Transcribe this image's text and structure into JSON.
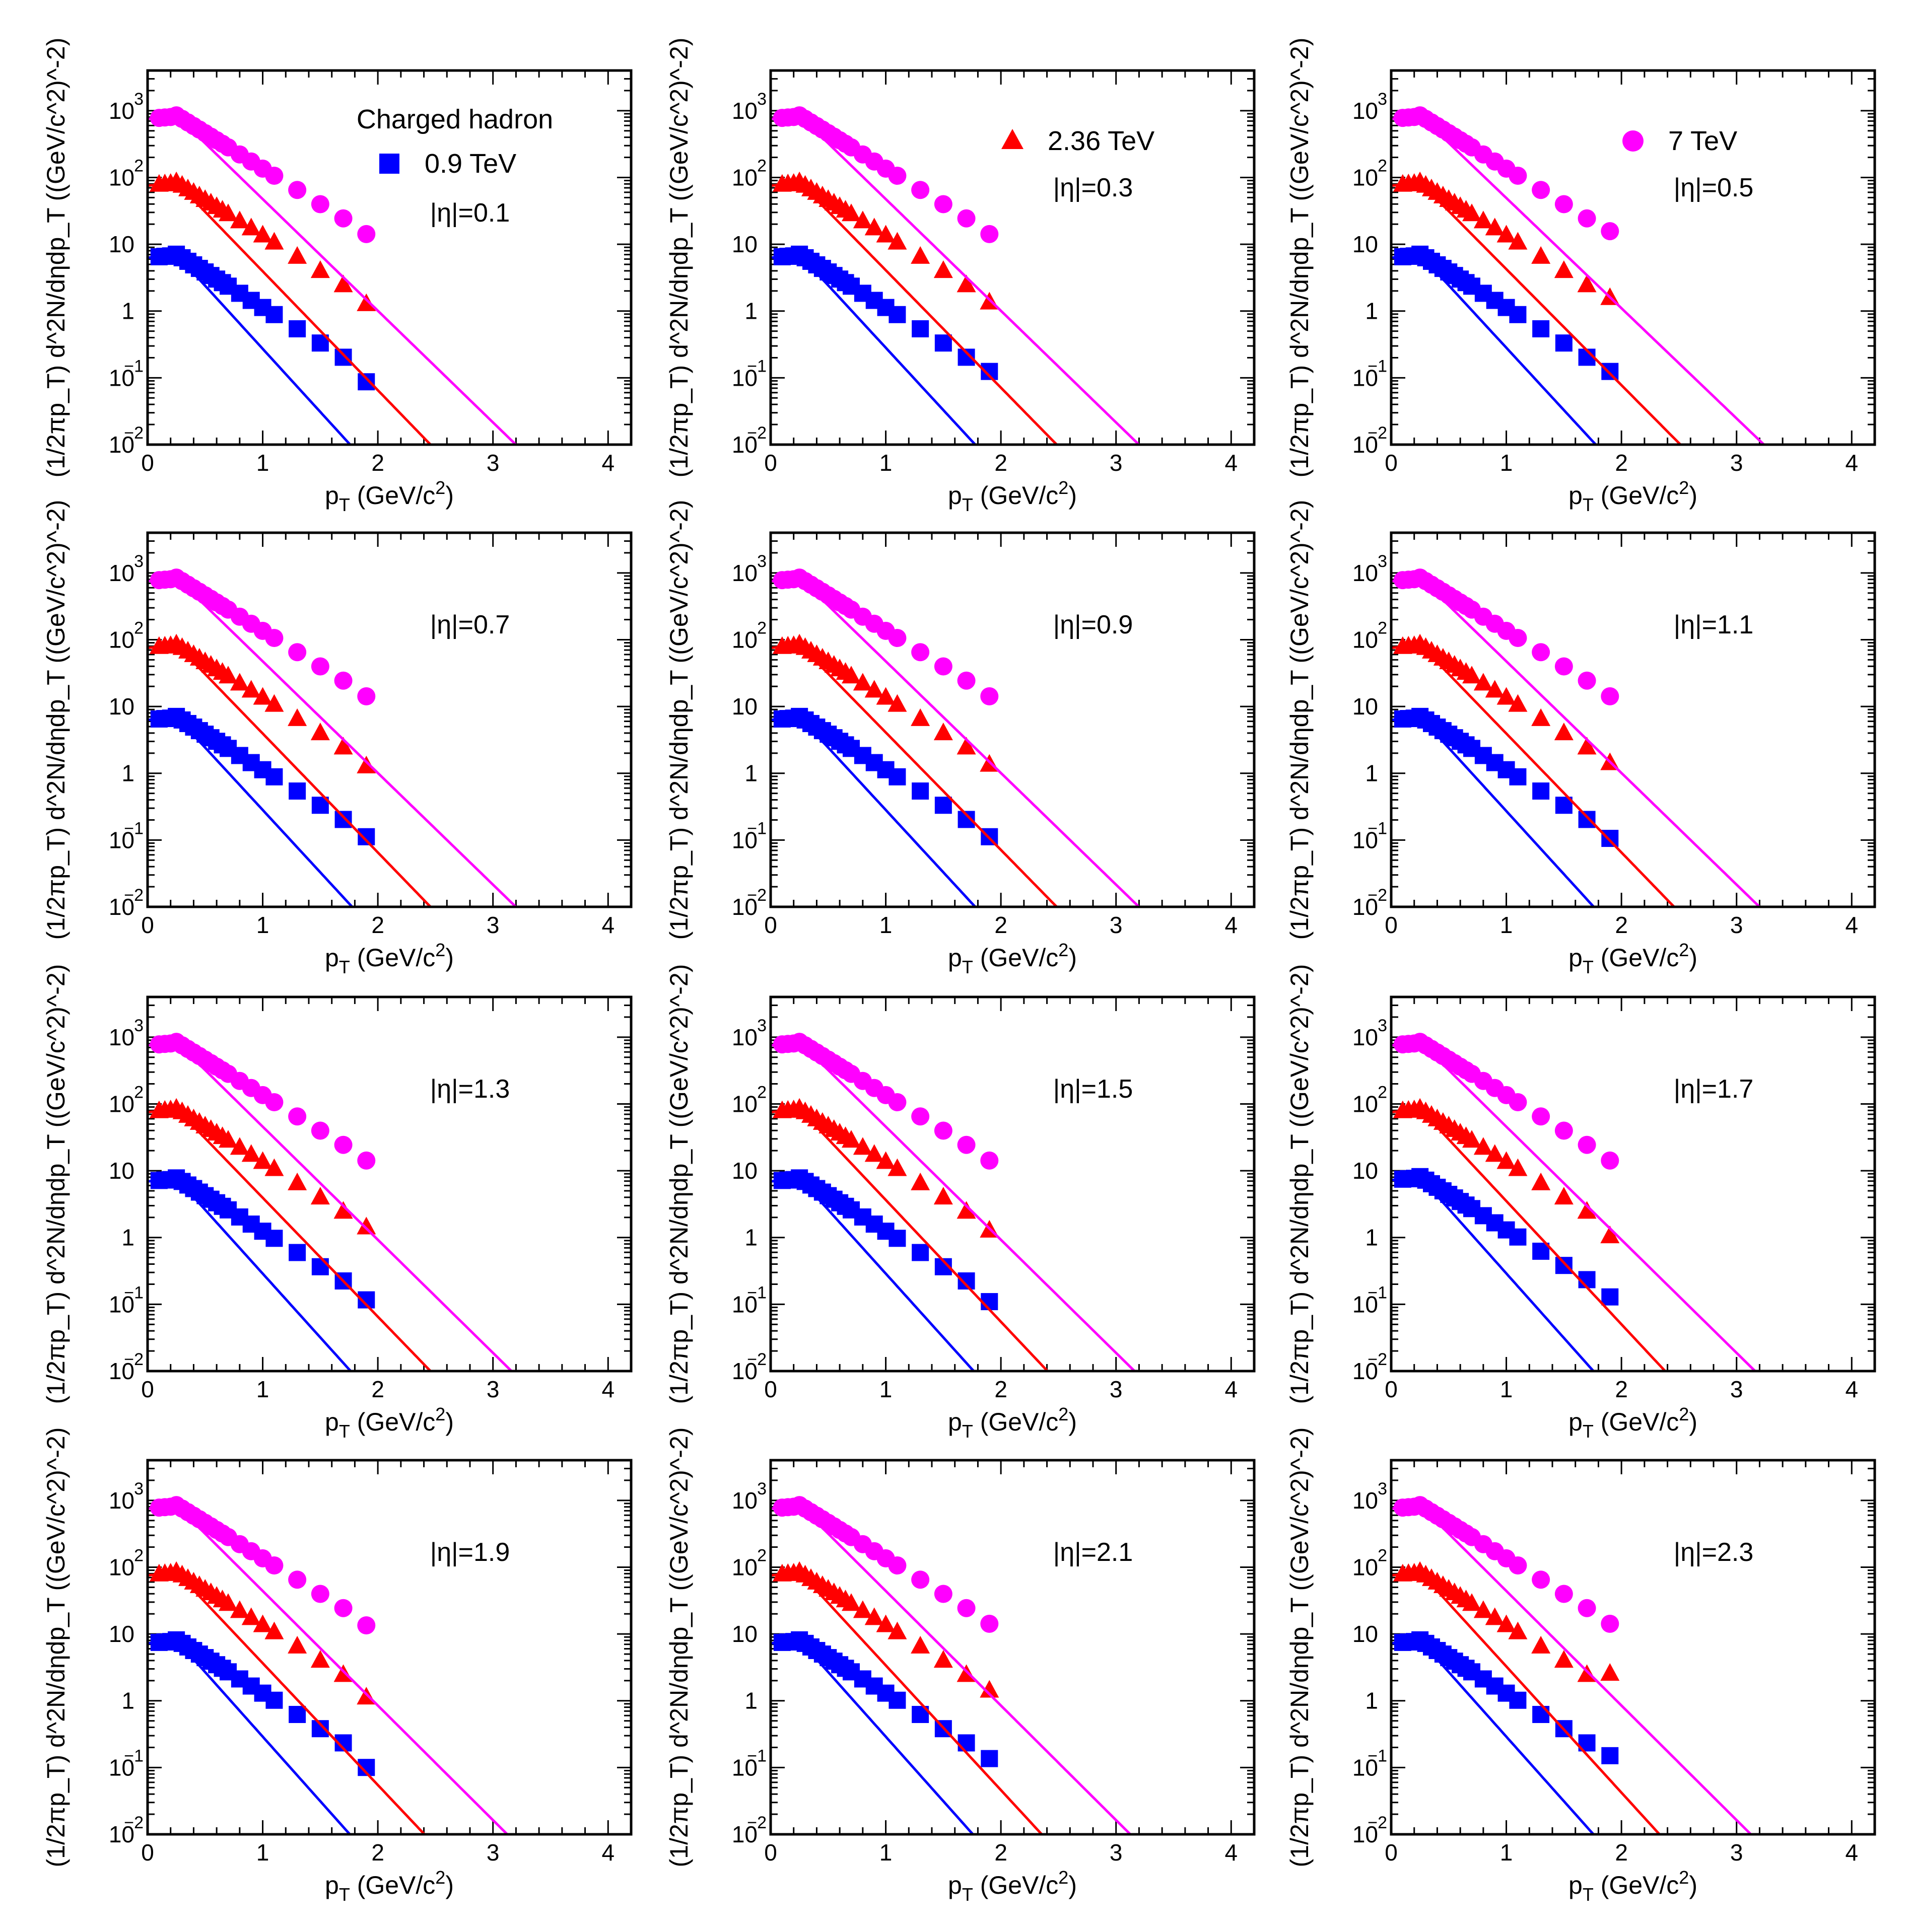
{
  "chart_data": {
    "type": "scatter",
    "x_axis": {
      "title": "p_T (GeV/c^2)",
      "title_main": "p",
      "title_sub": "T",
      "title_rest": " (GeV/c",
      "title_sup": "2",
      "title_close": ")",
      "range": [
        0,
        4.2
      ],
      "ticks": [
        0,
        1,
        2,
        3,
        4
      ],
      "tick_labels": [
        "0",
        "1",
        "2",
        "3",
        "4"
      ]
    },
    "y_axis": {
      "title": "(1/2πp_T) d^2N/dηdp_T ((GeV/c^2)^-2)",
      "scale": "log",
      "range": [
        0.01,
        4000
      ],
      "ticks": [
        0.01,
        0.1,
        1,
        10,
        100,
        1000
      ],
      "tick_labels": [
        {
          "base": "10",
          "exp": "−2"
        },
        {
          "base": "10",
          "exp": "−1"
        },
        {
          "base": "1",
          "exp": ""
        },
        {
          "base": "10",
          "exp": ""
        },
        {
          "base": "10",
          "exp": "2"
        },
        {
          "base": "10",
          "exp": "3"
        }
      ]
    },
    "legend": {
      "title": "Charged hadron",
      "entries": [
        {
          "label": "0.9 TeV",
          "marker": "square",
          "color": "#0000ff",
          "panel": 0
        },
        {
          "label": "2.36 TeV",
          "marker": "triangle",
          "color": "#ff0000",
          "panel": 1
        },
        {
          "label": "7 TeV",
          "marker": "circle",
          "color": "#ff00ff",
          "panel": 2
        }
      ]
    },
    "x": [
      0.1,
      0.15,
      0.2,
      0.25,
      0.3,
      0.35,
      0.4,
      0.45,
      0.5,
      0.55,
      0.6,
      0.65,
      0.7,
      0.8,
      0.9,
      1.0,
      1.1,
      1.3,
      1.5,
      1.7,
      1.9
    ],
    "panels": [
      {
        "label": "|η|=0.1",
        "series": [
          {
            "name": "0.9 TeV",
            "energy": "0.9 TeV",
            "color": "#0000ff",
            "marker": "square",
            "y_scale": 1,
            "fit_slope": 4.35,
            "fit_end": 2.44,
            "ratio_last": 0.7
          },
          {
            "name": "2.36 TeV",
            "energy": "2.36 TeV",
            "color": "#ff0000",
            "marker": "triangle",
            "y_scale": 12,
            "fit_slope": 4.1,
            "fit_end": 3.38,
            "ratio_last": 0.85
          },
          {
            "name": "7 TeV",
            "energy": "7 TeV",
            "color": "#ff00ff",
            "marker": "circle",
            "y_scale": 120,
            "fit_slope": 3.85,
            "fit_end": 4.2,
            "ratio_last": 0.95
          }
        ]
      },
      {
        "label": "|η|=0.3",
        "series": [
          {
            "name": "0.9 TeV",
            "energy": "0.9 TeV",
            "color": "#0000ff",
            "marker": "square",
            "y_scale": 1,
            "fit_slope": 4.3,
            "fit_end": 2.48,
            "ratio_last": 1.0
          },
          {
            "name": "2.36 TeV",
            "energy": "2.36 TeV",
            "color": "#ff0000",
            "marker": "triangle",
            "y_scale": 12,
            "fit_slope": 4.05,
            "fit_end": 3.42,
            "ratio_last": 0.9
          },
          {
            "name": "7 TeV",
            "energy": "7 TeV",
            "color": "#ff00ff",
            "marker": "circle",
            "y_scale": 120,
            "fit_slope": 3.85,
            "fit_end": 4.2,
            "ratio_last": 0.95
          }
        ]
      },
      {
        "label": "|η|=0.5",
        "series": [
          {
            "name": "0.9 TeV",
            "energy": "0.9 TeV",
            "color": "#0000ff",
            "marker": "square",
            "y_scale": 1,
            "fit_slope": 4.3,
            "fit_end": 2.5,
            "ratio_last": 1.0
          },
          {
            "name": "2.36 TeV",
            "energy": "2.36 TeV",
            "color": "#ff0000",
            "marker": "triangle",
            "y_scale": 12,
            "fit_slope": 4.0,
            "fit_end": 3.48,
            "ratio_last": 1.05
          },
          {
            "name": "7 TeV",
            "energy": "7 TeV",
            "color": "#ff00ff",
            "marker": "circle",
            "y_scale": 120,
            "fit_slope": 3.8,
            "fit_end": 4.2,
            "ratio_last": 1.05
          }
        ]
      },
      {
        "label": "|η|=0.7",
        "series": [
          {
            "name": "0.9 TeV",
            "energy": "0.9 TeV",
            "color": "#0000ff",
            "marker": "square",
            "y_scale": 1,
            "fit_slope": 4.3,
            "fit_end": 2.48,
            "ratio_last": 0.9
          },
          {
            "name": "2.36 TeV",
            "energy": "2.36 TeV",
            "color": "#ff0000",
            "marker": "triangle",
            "y_scale": 12,
            "fit_slope": 4.1,
            "fit_end": 3.38,
            "ratio_last": 0.85
          },
          {
            "name": "7 TeV",
            "energy": "7 TeV",
            "color": "#ff00ff",
            "marker": "circle",
            "y_scale": 120,
            "fit_slope": 3.85,
            "fit_end": 4.2,
            "ratio_last": 0.95
          }
        ]
      },
      {
        "label": "|η|=0.9",
        "series": [
          {
            "name": "0.9 TeV",
            "energy": "0.9 TeV",
            "color": "#0000ff",
            "marker": "square",
            "y_scale": 1,
            "fit_slope": 4.3,
            "fit_end": 2.45,
            "ratio_last": 0.9
          },
          {
            "name": "2.36 TeV",
            "energy": "2.36 TeV",
            "color": "#ff0000",
            "marker": "triangle",
            "y_scale": 12,
            "fit_slope": 4.05,
            "fit_end": 3.42,
            "ratio_last": 0.9
          },
          {
            "name": "7 TeV",
            "energy": "7 TeV",
            "color": "#ff00ff",
            "marker": "circle",
            "y_scale": 120,
            "fit_slope": 3.85,
            "fit_end": 4.2,
            "ratio_last": 0.95
          }
        ]
      },
      {
        "label": "|η|=1.1",
        "series": [
          {
            "name": "0.9 TeV",
            "energy": "0.9 TeV",
            "color": "#0000ff",
            "marker": "square",
            "y_scale": 1,
            "fit_slope": 4.35,
            "fit_end": 2.45,
            "ratio_last": 0.85
          },
          {
            "name": "2.36 TeV",
            "energy": "2.36 TeV",
            "color": "#ff0000",
            "marker": "triangle",
            "y_scale": 12,
            "fit_slope": 4.1,
            "fit_end": 3.42,
            "ratio_last": 0.95
          },
          {
            "name": "7 TeV",
            "energy": "7 TeV",
            "color": "#ff00ff",
            "marker": "circle",
            "y_scale": 120,
            "fit_slope": 3.85,
            "fit_end": 4.2,
            "ratio_last": 0.95
          }
        ]
      },
      {
        "label": "|η|=1.3",
        "series": [
          {
            "name": "0.9 TeV",
            "energy": "0.9 TeV",
            "color": "#0000ff",
            "marker": "square",
            "y_scale": 1.1,
            "fit_slope": 4.4,
            "fit_end": 2.44,
            "ratio_last": 0.85
          },
          {
            "name": "2.36 TeV",
            "energy": "2.36 TeV",
            "color": "#ff0000",
            "marker": "triangle",
            "y_scale": 12,
            "fit_slope": 4.1,
            "fit_end": 3.38,
            "ratio_last": 0.95
          },
          {
            "name": "7 TeV",
            "energy": "7 TeV",
            "color": "#ff00ff",
            "marker": "circle",
            "y_scale": 120,
            "fit_slope": 3.9,
            "fit_end": 4.2,
            "ratio_last": 0.95
          }
        ]
      },
      {
        "label": "|η|=1.5",
        "series": [
          {
            "name": "0.9 TeV",
            "energy": "0.9 TeV",
            "color": "#0000ff",
            "marker": "square",
            "y_scale": 1.1,
            "fit_slope": 4.4,
            "fit_end": 2.42,
            "ratio_last": 0.8
          },
          {
            "name": "2.36 TeV",
            "energy": "2.36 TeV",
            "color": "#ff0000",
            "marker": "triangle",
            "y_scale": 12,
            "fit_slope": 4.2,
            "fit_end": 3.28,
            "ratio_last": 0.85
          },
          {
            "name": "7 TeV",
            "energy": "7 TeV",
            "color": "#ff00ff",
            "marker": "circle",
            "y_scale": 120,
            "fit_slope": 3.9,
            "fit_end": 4.2,
            "ratio_last": 0.95
          }
        ]
      },
      {
        "label": "|η|=1.7",
        "series": [
          {
            "name": "0.9 TeV",
            "energy": "0.9 TeV",
            "color": "#0000ff",
            "marker": "square",
            "y_scale": 1.15,
            "fit_slope": 4.45,
            "fit_end": 2.38,
            "ratio_last": 0.9
          },
          {
            "name": "2.36 TeV",
            "energy": "2.36 TeV",
            "color": "#ff0000",
            "marker": "triangle",
            "y_scale": 12,
            "fit_slope": 4.25,
            "fit_end": 3.22,
            "ratio_last": 0.7
          },
          {
            "name": "7 TeV",
            "energy": "7 TeV",
            "color": "#ff00ff",
            "marker": "circle",
            "y_scale": 120,
            "fit_slope": 3.9,
            "fit_end": 4.2,
            "ratio_last": 0.95
          }
        ]
      },
      {
        "label": "|η|=1.9",
        "series": [
          {
            "name": "0.9 TeV",
            "energy": "0.9 TeV",
            "color": "#0000ff",
            "marker": "square",
            "y_scale": 1.15,
            "fit_slope": 4.45,
            "fit_end": 2.36,
            "ratio_last": 0.7
          },
          {
            "name": "2.36 TeV",
            "energy": "2.36 TeV",
            "color": "#ff0000",
            "marker": "triangle",
            "y_scale": 12,
            "fit_slope": 4.2,
            "fit_end": 3.35,
            "ratio_last": 0.75
          },
          {
            "name": "7 TeV",
            "energy": "7 TeV",
            "color": "#ff00ff",
            "marker": "circle",
            "y_scale": 120,
            "fit_slope": 3.95,
            "fit_end": 4.2,
            "ratio_last": 0.9
          }
        ]
      },
      {
        "label": "|η|=2.1",
        "series": [
          {
            "name": "0.9 TeV",
            "energy": "0.9 TeV",
            "color": "#0000ff",
            "marker": "square",
            "y_scale": 1.15,
            "fit_slope": 4.45,
            "fit_end": 2.4,
            "ratio_last": 0.95
          },
          {
            "name": "2.36 TeV",
            "energy": "2.36 TeV",
            "color": "#ff0000",
            "marker": "triangle",
            "y_scale": 12,
            "fit_slope": 4.3,
            "fit_end": 3.22,
            "ratio_last": 0.95
          },
          {
            "name": "7 TeV",
            "energy": "7 TeV",
            "color": "#ff00ff",
            "marker": "circle",
            "y_scale": 120,
            "fit_slope": 3.95,
            "fit_end": 4.2,
            "ratio_last": 0.95
          }
        ]
      },
      {
        "label": "|η|=2.3",
        "series": [
          {
            "name": "0.9 TeV",
            "energy": "0.9 TeV",
            "color": "#0000ff",
            "marker": "square",
            "y_scale": 1.15,
            "fit_slope": 4.45,
            "fit_end": 2.38,
            "ratio_last": 1.05
          },
          {
            "name": "2.36 TeV",
            "energy": "2.36 TeV",
            "color": "#ff0000",
            "marker": "triangle",
            "y_scale": 12,
            "fit_slope": 4.35,
            "fit_end": 3.14,
            "ratio_last": 1.7
          },
          {
            "name": "7 TeV",
            "energy": "7 TeV",
            "color": "#ff00ff",
            "marker": "circle",
            "y_scale": 120,
            "fit_slope": 3.95,
            "fit_end": 4.2,
            "ratio_last": 0.95
          }
        ]
      }
    ]
  }
}
